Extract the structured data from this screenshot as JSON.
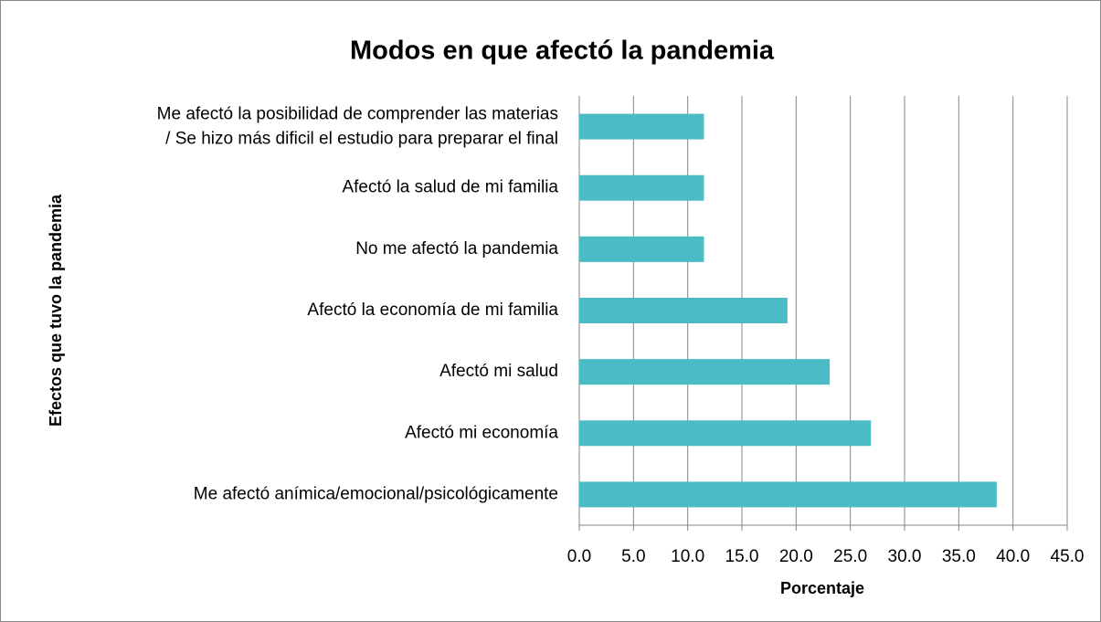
{
  "chart_data": {
    "type": "barh",
    "title": "Modos en que afectó la pandemia",
    "xlabel": "Porcentaje",
    "ylabel": "Efectos que tuvo la pandemia",
    "categories": [
      "Me afectó la posibilidad de comprender las materias / Se hizo más dificil el estudio para preparar el final",
      "Afectó la salud de mi familia",
      "No me afectó la pandemia",
      "Afectó la economía de mi familia",
      "Afectó mi salud",
      "Afectó mi economía",
      "Me afectó anímica/emocional/psicológicamente"
    ],
    "values": [
      11.5,
      11.5,
      11.5,
      19.2,
      23.1,
      26.9,
      38.5
    ],
    "color": "#4bbcc5",
    "xlim": [
      0,
      45
    ],
    "xticks": [
      {
        "value": 0,
        "label": "0.0"
      },
      {
        "value": 5,
        "label": "5.0"
      },
      {
        "value": 10,
        "label": "10.0"
      },
      {
        "value": 15,
        "label": "15.0"
      },
      {
        "value": 20,
        "label": "20.0"
      },
      {
        "value": 25,
        "label": "25.0"
      },
      {
        "value": 30,
        "label": "30.0"
      },
      {
        "value": 35,
        "label": "35.0"
      },
      {
        "value": 40,
        "label": "40.0"
      },
      {
        "value": 45,
        "label": "45.0"
      }
    ],
    "grid": true
  }
}
